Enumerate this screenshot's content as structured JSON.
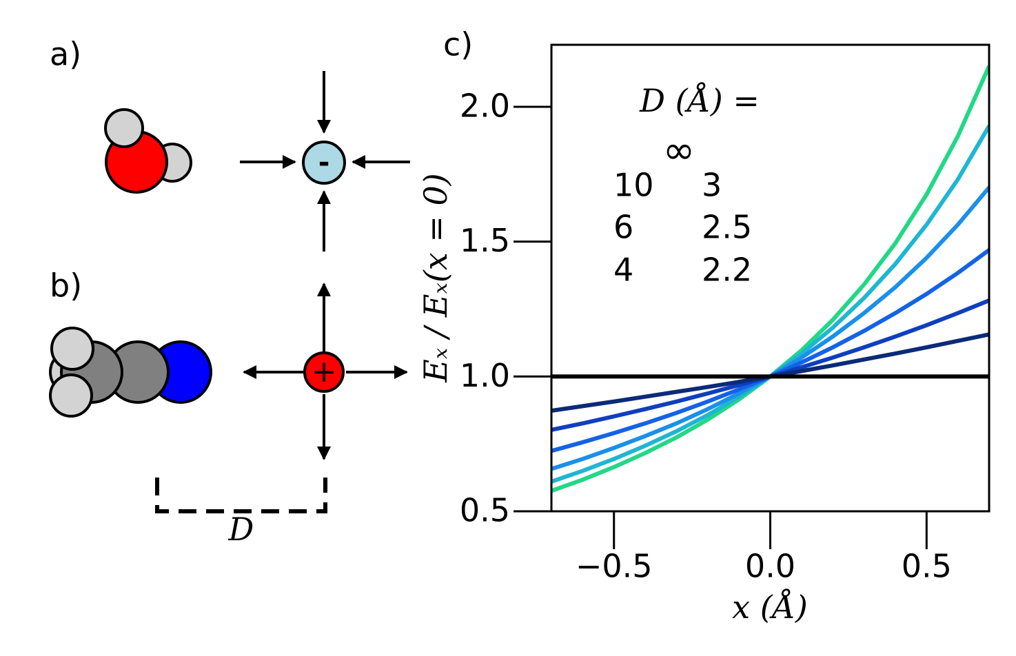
{
  "diagram": {
    "panel_a": "a)",
    "panel_b": "b)",
    "anion_sign": "-",
    "cation_sign": "+",
    "distance_label": "D"
  },
  "chart_data": {
    "type": "line",
    "panel_label": "c)",
    "x_label": "x (Å)",
    "y_label": "Eₓ / Eₓ(x = 0)",
    "legend_title": "D (Å) =",
    "x": [
      -0.7,
      -0.6,
      -0.5,
      -0.4,
      -0.3,
      -0.2,
      -0.1,
      0,
      0.1,
      0.2,
      0.3,
      0.4,
      0.5,
      0.6,
      0.7
    ],
    "series": [
      {
        "name": "∞",
        "color": "#000000",
        "values": [
          1,
          1,
          1,
          1,
          1,
          1,
          1,
          1,
          1,
          1,
          1,
          1,
          1,
          1,
          1
        ]
      },
      {
        "name": "10",
        "color": "#0b2a78",
        "values": [
          0.873,
          0.89,
          0.907,
          0.925,
          0.943,
          0.961,
          0.98,
          1,
          1.02,
          1.041,
          1.063,
          1.085,
          1.108,
          1.132,
          1.156
        ]
      },
      {
        "name": "6",
        "color": "#0f3fbf",
        "values": [
          0.802,
          0.826,
          0.852,
          0.879,
          0.907,
          0.937,
          0.968,
          1,
          1.034,
          1.07,
          1.108,
          1.148,
          1.19,
          1.235,
          1.282
        ]
      },
      {
        "name": "4",
        "color": "#1463e6",
        "values": [
          0.724,
          0.756,
          0.79,
          0.826,
          0.865,
          0.907,
          0.952,
          1,
          1.052,
          1.108,
          1.169,
          1.235,
          1.306,
          1.384,
          1.469
        ]
      },
      {
        "name": "3",
        "color": "#1a90ea",
        "values": [
          0.657,
          0.694,
          0.735,
          0.779,
          0.826,
          0.879,
          0.937,
          1,
          1.07,
          1.148,
          1.235,
          1.331,
          1.44,
          1.563,
          1.701
        ]
      },
      {
        "name": "2.5",
        "color": "#1fb6d2",
        "values": [
          0.61,
          0.65,
          0.694,
          0.743,
          0.797,
          0.857,
          0.925,
          1,
          1.085,
          1.181,
          1.291,
          1.417,
          1.563,
          1.731,
          1.929
        ]
      },
      {
        "name": "2.2",
        "color": "#22d886",
        "values": [
          0.576,
          0.617,
          0.664,
          0.716,
          0.774,
          0.84,
          0.915,
          1,
          1.097,
          1.21,
          1.341,
          1.494,
          1.675,
          1.891,
          2.151
        ]
      }
    ],
    "xlim": [
      -0.7,
      0.7
    ],
    "ylim": [
      0.5,
      2.23
    ],
    "xticks": [
      {
        "value": -0.5,
        "label": "−0.5"
      },
      {
        "value": 0,
        "label": "0.0"
      },
      {
        "value": 0.5,
        "label": "0.5"
      }
    ],
    "yticks": [
      0.5,
      {
        "value": 1,
        "label": "1.0"
      },
      1.5,
      {
        "value": 2,
        "label": "2.0"
      }
    ],
    "grid": false
  }
}
